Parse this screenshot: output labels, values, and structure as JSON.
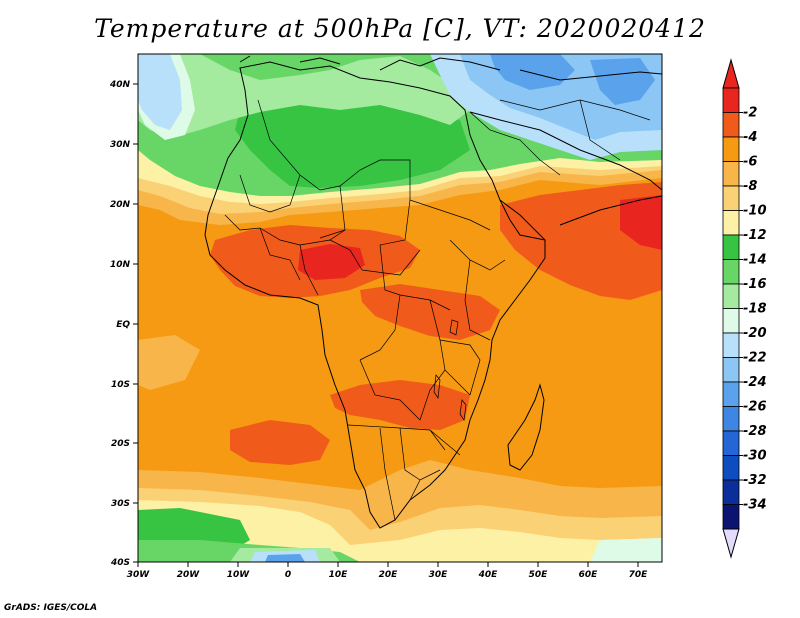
{
  "title": "Temperature at 500hPa [C], VT: 2020020412",
  "credit": "GrADS: IGES/COLA",
  "map": {
    "lat_ticks": [
      "40N",
      "30N",
      "20N",
      "10N",
      "EQ",
      "10S",
      "20S",
      "30S",
      "40S"
    ],
    "lon_ticks": [
      "30W",
      "20W",
      "10W",
      "0",
      "10E",
      "20E",
      "30E",
      "40E",
      "50E",
      "60E",
      "70E"
    ]
  },
  "colorbar": {
    "labels": [
      "-2",
      "-4",
      "-6",
      "-8",
      "-10",
      "-12",
      "-14",
      "-16",
      "-18",
      "-20",
      "-22",
      "-24",
      "-26",
      "-28",
      "-30",
      "-32",
      "-34"
    ],
    "colors": [
      "#e8261f",
      "#f05b1c",
      "#f59a12",
      "#f8b64a",
      "#fbd176",
      "#fdf1a6",
      "#37c443",
      "#67d667",
      "#a4eba0",
      "#ddfbe6",
      "#b8e0fb",
      "#8bc6f4",
      "#5aa3ec",
      "#3e86e3",
      "#2466d6",
      "#0e4dc0",
      "#0a2f9a",
      "#0b1470"
    ],
    "top_arrow_color": "#e8261f",
    "bottom_arrow_color": "#e3dbfb"
  },
  "palette": {
    "deep_orange": "#f05b1c",
    "orange": "#f59a12",
    "light_orange": "#f8b64a",
    "yellow": "#fbd176",
    "pale_yellow": "#fdf1a6",
    "green": "#37c443",
    "mid_green": "#67d667",
    "light_green": "#a4eba0",
    "pale_green": "#ddfbe6",
    "pale_blue": "#b8e0fb",
    "light_blue": "#8bc6f4",
    "blue": "#5aa3ec",
    "red": "#e8261f"
  }
}
